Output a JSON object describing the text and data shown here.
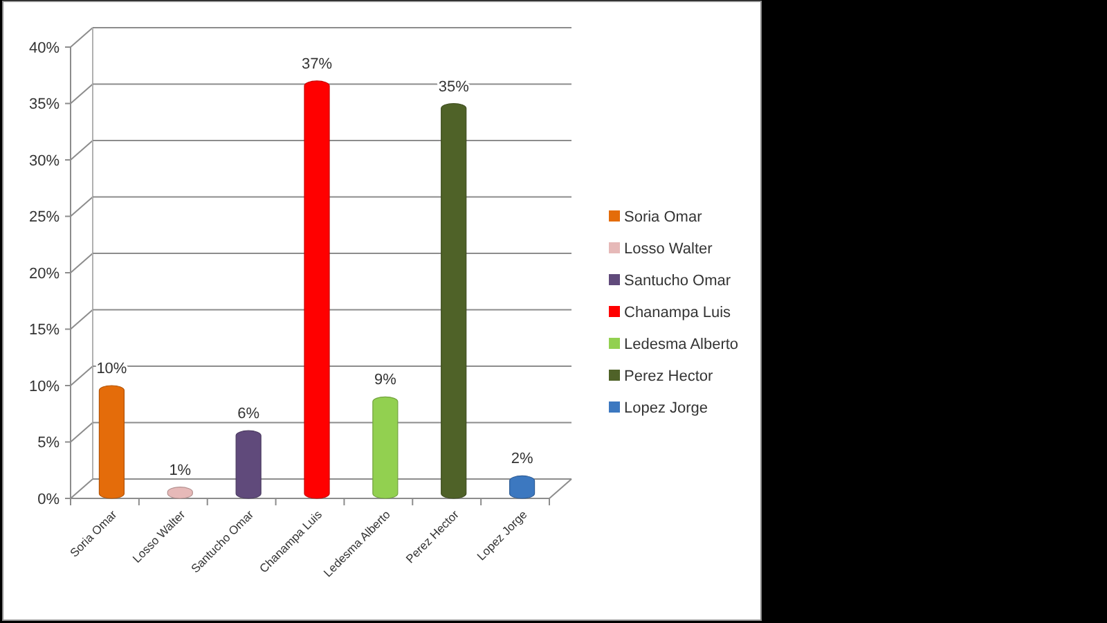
{
  "chart_data": {
    "type": "bar",
    "stacked": true,
    "categories": [
      "Soria Omar",
      "Losso Walter",
      "Santucho Omar",
      "Chanampa Luis",
      "Ledesma Alberto",
      "Perez Hector",
      "Lopez Jorge"
    ],
    "series": [
      {
        "name": "Soria Omar",
        "color": "#e46c0a",
        "values": [
          10,
          null,
          null,
          null,
          null,
          null,
          null
        ],
        "value_labels": [
          "10%",
          null,
          null,
          null,
          null,
          null,
          null
        ]
      },
      {
        "name": "Losso Walter",
        "color": "#e6b9b8",
        "values": [
          null,
          1,
          null,
          null,
          null,
          null,
          null
        ],
        "value_labels": [
          null,
          "1%",
          null,
          null,
          null,
          null,
          null
        ]
      },
      {
        "name": "Santucho Omar",
        "color": "#604a7b",
        "values": [
          null,
          null,
          6,
          null,
          null,
          null,
          null
        ],
        "value_labels": [
          null,
          null,
          "6%",
          null,
          null,
          null,
          null
        ]
      },
      {
        "name": "Chanampa Luis",
        "color": "#ff0000",
        "values": [
          null,
          null,
          null,
          37,
          null,
          null,
          null
        ],
        "value_labels": [
          null,
          null,
          null,
          "37%",
          null,
          null,
          null
        ]
      },
      {
        "name": "Ledesma Alberto",
        "color": "#92d050",
        "values": [
          null,
          null,
          null,
          null,
          9,
          null,
          null
        ],
        "value_labels": [
          null,
          null,
          null,
          null,
          "9%",
          null,
          null
        ]
      },
      {
        "name": "Perez Hector",
        "color": "#4f6228",
        "values": [
          null,
          null,
          null,
          null,
          null,
          35,
          null
        ],
        "value_labels": [
          null,
          null,
          null,
          null,
          null,
          "35%",
          null
        ]
      },
      {
        "name": "Lopez Jorge",
        "color": "#3c78c0",
        "values": [
          null,
          null,
          null,
          null,
          null,
          null,
          2
        ],
        "value_labels": [
          null,
          null,
          null,
          null,
          null,
          null,
          "2%"
        ]
      }
    ],
    "ylim": [
      0,
      40
    ],
    "yticks": [
      {
        "value": 0,
        "label": "0%"
      },
      {
        "value": 5,
        "label": "5%"
      },
      {
        "value": 10,
        "label": "10%"
      },
      {
        "value": 15,
        "label": "15%"
      },
      {
        "value": 20,
        "label": "20%"
      },
      {
        "value": 25,
        "label": "25%"
      },
      {
        "value": 30,
        "label": "30%"
      },
      {
        "value": 35,
        "label": "35%"
      },
      {
        "value": 40,
        "label": "40%"
      }
    ],
    "grid": "y",
    "legend": "right"
  }
}
